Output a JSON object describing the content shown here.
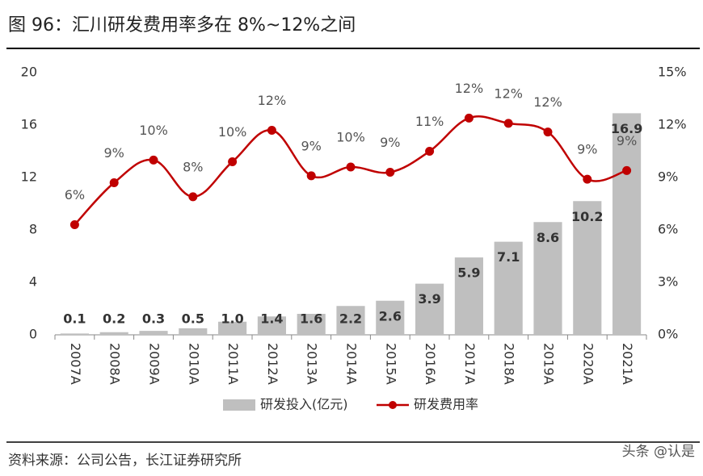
{
  "chart_data": {
    "type": "bar",
    "title": "图 96：汇川研发费用率多在 8%~12%之间",
    "source": "资料来源：公司公告，长江证券研究所",
    "watermark": "头条 @认是",
    "categories": [
      "2007A",
      "2008A",
      "2009A",
      "2010A",
      "2011A",
      "2012A",
      "2013A",
      "2014A",
      "2015A",
      "2016A",
      "2017A",
      "2018A",
      "2019A",
      "2020A",
      "2021A"
    ],
    "series": [
      {
        "name": "研发投入(亿元)",
        "type": "bar",
        "color": "#bfbfbf",
        "values": [
          0.1,
          0.2,
          0.3,
          0.5,
          1.0,
          1.4,
          1.6,
          2.2,
          2.6,
          3.9,
          5.9,
          7.1,
          8.6,
          10.2,
          16.9
        ],
        "value_labels": [
          "0.1",
          "0.2",
          "0.3",
          "0.5",
          "1.0",
          "1.4",
          "1.6",
          "2.2",
          "2.6",
          "3.9",
          "5.9",
          "7.1",
          "8.6",
          "10.2",
          "16.9"
        ]
      },
      {
        "name": "研发费用率",
        "type": "line",
        "axis": "y2",
        "color": "#c00000",
        "values": [
          6.3,
          8.7,
          10.0,
          7.9,
          9.9,
          11.7,
          9.1,
          9.6,
          9.3,
          10.5,
          12.4,
          12.1,
          11.6,
          8.9,
          9.4
        ],
        "value_labels": [
          "6%",
          "9%",
          "10%",
          "8%",
          "10%",
          "12%",
          "9%",
          "10%",
          "9%",
          "11%",
          "12%",
          "12%",
          "12%",
          "9%",
          "9%"
        ]
      }
    ],
    "ylim": [
      0,
      20
    ],
    "yticks": [
      0,
      4,
      8,
      12,
      16,
      20
    ],
    "y2lim": [
      0,
      15
    ],
    "y2ticks": [
      {
        "value": 0,
        "label": "0%"
      },
      {
        "value": 3,
        "label": "3%"
      },
      {
        "value": 6,
        "label": "6%"
      },
      {
        "value": 9,
        "label": "9%"
      },
      {
        "value": 12,
        "label": "12%"
      },
      {
        "value": 15,
        "label": "15%"
      }
    ],
    "grid": false,
    "legend": "bottom"
  }
}
